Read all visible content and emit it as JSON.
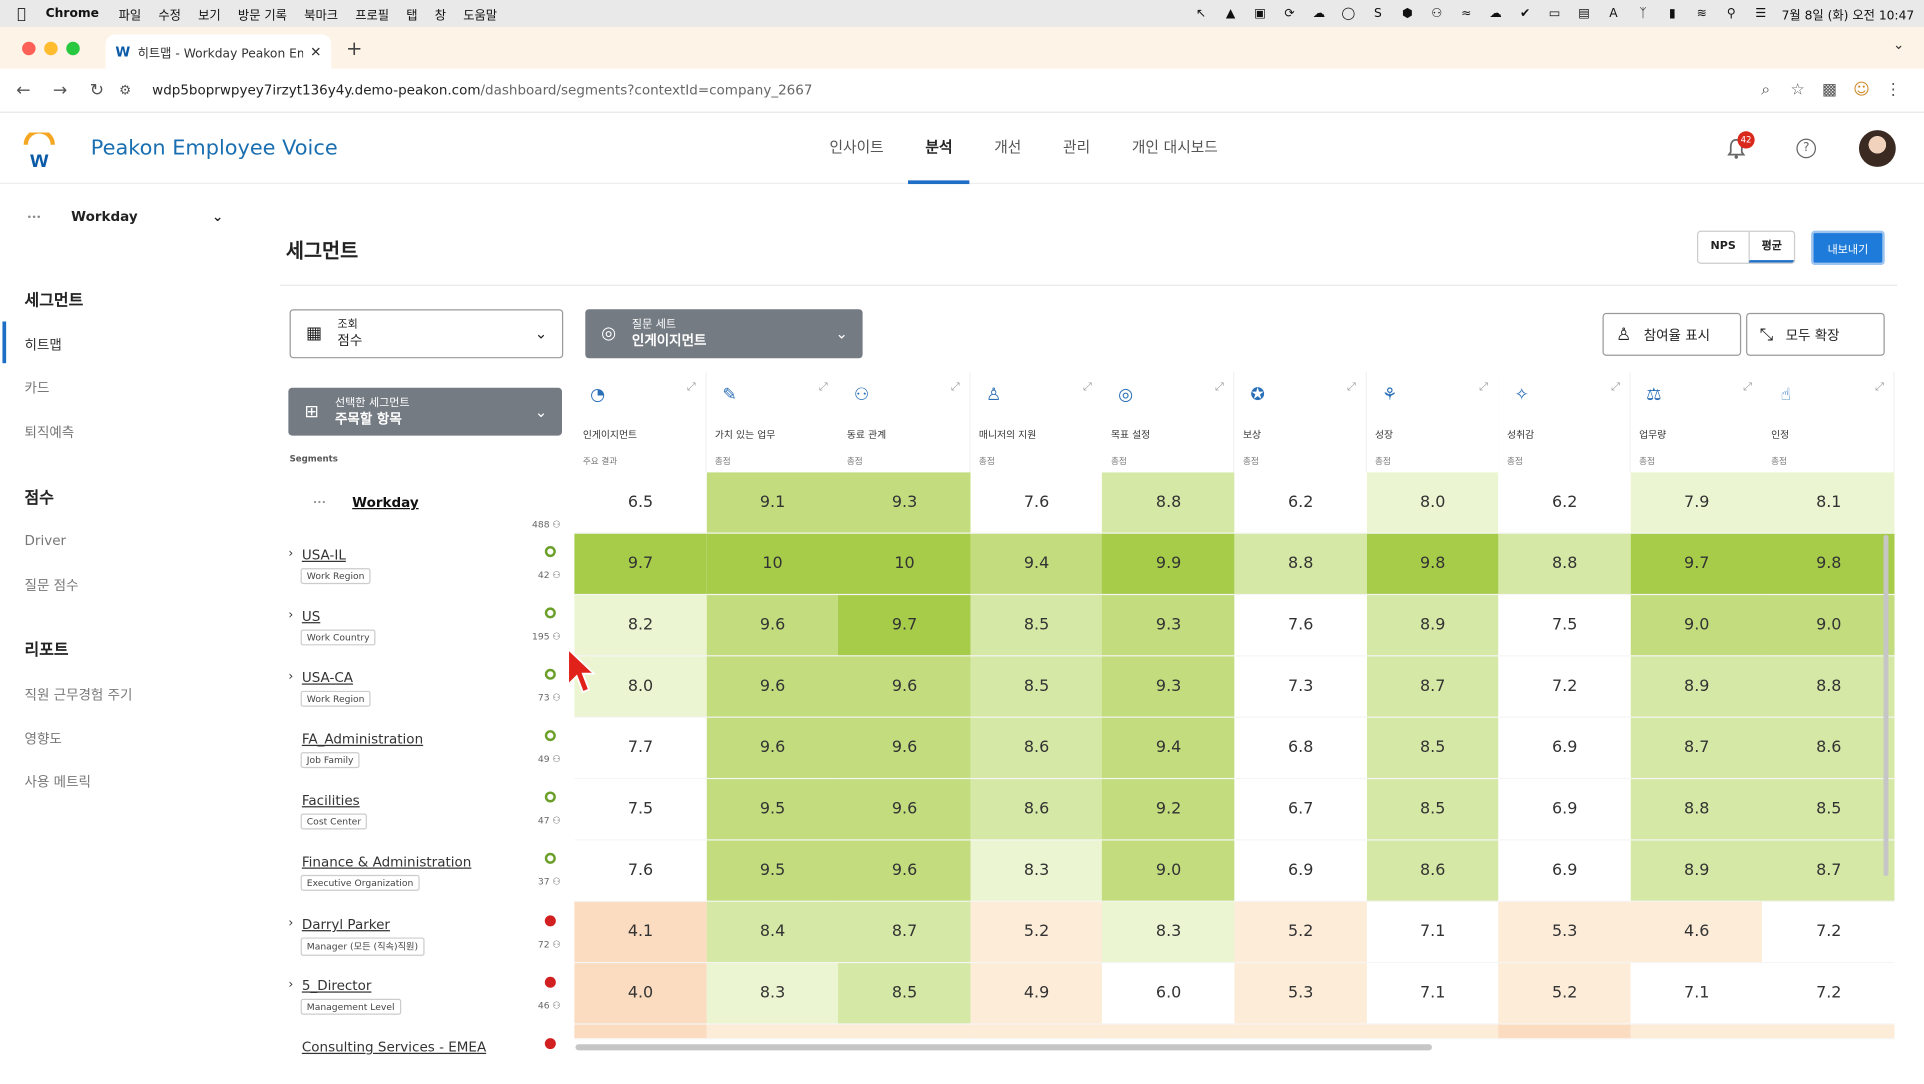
{
  "menubar": {
    "app": "Chrome",
    "items": [
      "파일",
      "수정",
      "보기",
      "방문 기록",
      "북마크",
      "프로필",
      "탭",
      "창",
      "도움말"
    ],
    "clock": "7월 8일 (화) 오전 10:47"
  },
  "browser": {
    "tab_title": "히트맵 - Workday Peakon Emp",
    "url_main": "wdp5boprwpyey7irzyt136y4y.demo-peakon.com",
    "url_path": "/dashboard/segments?contextId=company_2667"
  },
  "header": {
    "app_title": "Peakon Employee Voice",
    "nav": [
      "인사이트",
      "분석",
      "개선",
      "관리",
      "개인 대시보드"
    ],
    "active_nav": "분석",
    "notification_count": "42"
  },
  "sidebar": {
    "workspace": "Workday",
    "section1": "세그먼트",
    "items1": [
      "히트맵",
      "카드",
      "퇴직예측"
    ],
    "section2": "점수",
    "items2": [
      "Driver",
      "질문 점수"
    ],
    "section3": "리포트",
    "items3": [
      "직원 근무경험 주기",
      "영향도",
      "사용 메트릭"
    ]
  },
  "page": {
    "title": "세그먼트",
    "toggle_nps": "NPS",
    "toggle_avg": "평균",
    "export": "내보내기",
    "view_label": "조회",
    "view_value": "점수",
    "qset_label": "질문 세트",
    "qset_value": "인게이지먼트",
    "segsel_label": "선택한 세그먼트",
    "segsel_value": "주목할 항목",
    "show_participation": "참여율 표시",
    "expand_all": "모두 확장",
    "segments_label": "Segments"
  },
  "columns": [
    {
      "name": "인게이지먼트",
      "sub": "주요 결과",
      "icon": "◔"
    },
    {
      "name": "가치 있는 업무",
      "sub": "총점",
      "icon": "✎"
    },
    {
      "name": "동료 관계",
      "sub": "총점",
      "icon": "⚇"
    },
    {
      "name": "매니저의 지원",
      "sub": "총점",
      "icon": "♙"
    },
    {
      "name": "목표 설정",
      "sub": "총점",
      "icon": "◎"
    },
    {
      "name": "보상",
      "sub": "총점",
      "icon": "✪"
    },
    {
      "name": "성장",
      "sub": "총점",
      "icon": "⚘"
    },
    {
      "name": "성취감",
      "sub": "총점",
      "icon": "✧"
    },
    {
      "name": "업무량",
      "sub": "총점",
      "icon": "⚖"
    },
    {
      "name": "인정",
      "sub": "총점",
      "icon": "☝"
    }
  ],
  "rows": [
    {
      "name": "Workday",
      "tag": "",
      "count": "488",
      "status": "none",
      "bold": true,
      "arrow": false,
      "values": [
        "6.5",
        "9.1",
        "9.3",
        "7.6",
        "8.8",
        "6.2",
        "8.0",
        "6.2",
        "7.9",
        "8.1"
      ]
    },
    {
      "name": "USA-IL",
      "tag": "Work Region",
      "count": "42",
      "status": "ok",
      "arrow": true,
      "values": [
        "9.7",
        "10",
        "10",
        "9.4",
        "9.9",
        "8.8",
        "9.8",
        "8.8",
        "9.7",
        "9.8"
      ]
    },
    {
      "name": "US",
      "tag": "Work Country",
      "count": "195",
      "status": "ok",
      "arrow": true,
      "values": [
        "8.2",
        "9.6",
        "9.7",
        "8.5",
        "9.3",
        "7.6",
        "8.9",
        "7.5",
        "9.0",
        "9.0"
      ]
    },
    {
      "name": "USA-CA",
      "tag": "Work Region",
      "count": "73",
      "status": "ok",
      "arrow": true,
      "values": [
        "8.0",
        "9.6",
        "9.6",
        "8.5",
        "9.3",
        "7.3",
        "8.7",
        "7.2",
        "8.9",
        "8.8"
      ]
    },
    {
      "name": "FA_Administration",
      "tag": "Job Family",
      "count": "49",
      "status": "ok",
      "arrow": false,
      "values": [
        "7.7",
        "9.6",
        "9.6",
        "8.6",
        "9.4",
        "6.8",
        "8.5",
        "6.9",
        "8.7",
        "8.6"
      ]
    },
    {
      "name": "Facilities",
      "tag": "Cost Center",
      "count": "47",
      "status": "ok",
      "arrow": false,
      "values": [
        "7.5",
        "9.5",
        "9.6",
        "8.6",
        "9.2",
        "6.7",
        "8.5",
        "6.9",
        "8.8",
        "8.5"
      ]
    },
    {
      "name": "Finance & Administration",
      "tag": "Executive Organization",
      "count": "37",
      "status": "ok",
      "arrow": false,
      "values": [
        "7.6",
        "9.5",
        "9.6",
        "8.3",
        "9.0",
        "6.9",
        "8.6",
        "6.9",
        "8.9",
        "8.7"
      ]
    },
    {
      "name": "Darryl Parker",
      "tag": "Manager (모든 (직속)직원)",
      "count": "72",
      "status": "bad",
      "arrow": true,
      "values": [
        "4.1",
        "8.4",
        "8.7",
        "5.2",
        "8.3",
        "5.2",
        "7.1",
        "5.3",
        "4.6",
        "7.2"
      ]
    },
    {
      "name": "5_Director",
      "tag": "Management Level",
      "count": "46",
      "status": "bad",
      "arrow": true,
      "values": [
        "4.0",
        "8.3",
        "8.5",
        "4.9",
        "6.0",
        "5.3",
        "7.1",
        "5.2",
        "7.1",
        "7.2"
      ]
    },
    {
      "name": "Consulting Services - EMEA",
      "tag": "",
      "count": "",
      "status": "bad",
      "arrow": false,
      "values": []
    }
  ],
  "colors": {
    "accent": "#1f6ec5",
    "g_max": "#a6cc4a",
    "g_high": "#c2dc7e",
    "g_mid": "#d6e8a6",
    "g_low": "#ecf5d2",
    "neutral": "#ffffff",
    "o_light": "#fcecd8",
    "o_mid": "#fbdcc0"
  }
}
